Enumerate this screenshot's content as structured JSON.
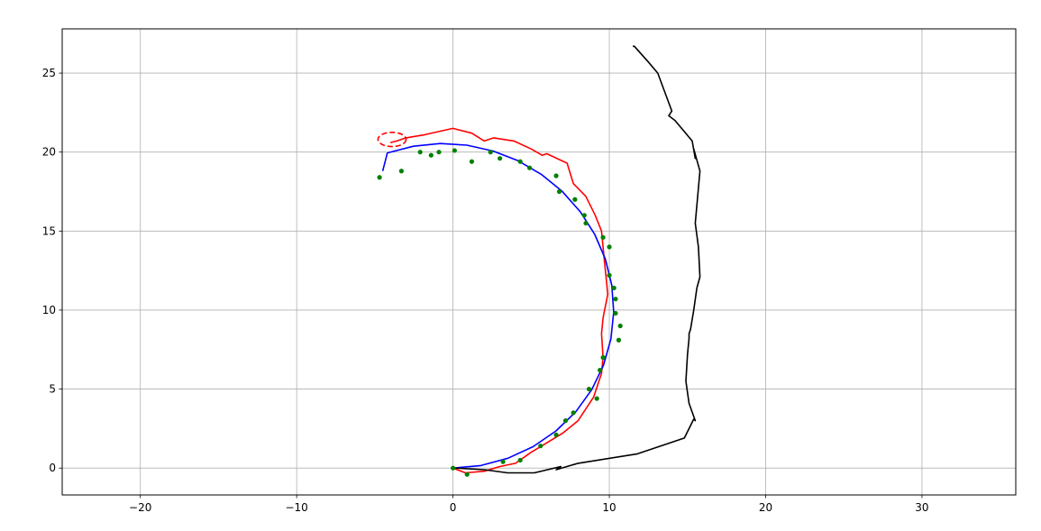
{
  "chart_data": {
    "type": "line",
    "title": "",
    "xlabel": "",
    "ylabel": "",
    "xlim": [
      -25,
      36
    ],
    "ylim": [
      -1.7,
      27.8
    ],
    "grid": true,
    "xticks": [
      -20,
      -10,
      0,
      10,
      20,
      30
    ],
    "yticks": [
      0,
      5,
      10,
      15,
      20,
      25
    ],
    "xtick_labels": [
      "−20",
      "−10",
      "0",
      "10",
      "20",
      "30"
    ],
    "ytick_labels": [
      "0",
      "5",
      "10",
      "15",
      "20",
      "25"
    ],
    "series": [
      {
        "kind": "line",
        "color": "#ff0000",
        "points": [
          [
            0,
            0
          ],
          [
            0.8,
            -0.3
          ],
          [
            2,
            -0.2
          ],
          [
            3,
            0.1
          ],
          [
            4,
            0.3
          ],
          [
            5,
            1
          ],
          [
            6,
            1.6
          ],
          [
            7,
            2.2
          ],
          [
            8,
            3
          ],
          [
            9,
            4.5
          ],
          [
            9.5,
            6
          ],
          [
            9.6,
            7
          ],
          [
            9.5,
            8.5
          ],
          [
            9.6,
            9.5
          ],
          [
            9.7,
            10
          ],
          [
            9.8,
            10.5
          ],
          [
            9.9,
            11
          ],
          [
            9.8,
            12
          ],
          [
            9.7,
            13
          ],
          [
            9.6,
            14
          ],
          [
            9.5,
            15
          ],
          [
            9.1,
            16
          ],
          [
            8.5,
            17.2
          ],
          [
            7.7,
            18
          ],
          [
            7.3,
            19.3
          ],
          [
            6,
            19.9
          ],
          [
            5.7,
            19.8
          ],
          [
            5,
            20.2
          ],
          [
            3.9,
            20.7
          ],
          [
            2.6,
            20.9
          ],
          [
            2,
            20.7
          ],
          [
            1.2,
            21.2
          ],
          [
            0,
            21.5
          ],
          [
            -1.8,
            21.1
          ],
          [
            -3,
            20.9
          ],
          [
            -3.6,
            20.7
          ],
          [
            -4,
            20.6
          ]
        ]
      },
      {
        "kind": "ellipse",
        "color": "#ff0000",
        "dashed": true,
        "center": [
          -3.9,
          20.8
        ],
        "rx": 0.9,
        "ry": 0.45
      },
      {
        "kind": "line",
        "color": "#0000ff",
        "points": [
          [
            0.0,
            0.0
          ],
          [
            1.78,
            0.16
          ],
          [
            3.51,
            0.62
          ],
          [
            5.13,
            1.36
          ],
          [
            6.59,
            2.35
          ],
          [
            7.85,
            3.56
          ],
          [
            8.87,
            4.96
          ],
          [
            9.63,
            6.51
          ],
          [
            10.1,
            8.17
          ],
          [
            10.28,
            9.87
          ],
          [
            10.16,
            11.57
          ],
          [
            9.75,
            13.22
          ],
          [
            9.07,
            14.79
          ],
          [
            8.14,
            16.23
          ],
          [
            6.99,
            17.51
          ],
          [
            5.65,
            18.59
          ],
          [
            4.16,
            19.45
          ],
          [
            2.56,
            20.07
          ],
          [
            0.89,
            20.44
          ],
          [
            -0.82,
            20.54
          ],
          [
            -2.53,
            20.37
          ],
          [
            -4.2,
            19.95
          ],
          [
            -4.5,
            18.8
          ]
        ]
      },
      {
        "kind": "scatter",
        "color": "#008000",
        "points": [
          [
            0,
            0
          ],
          [
            0.9,
            -0.4
          ],
          [
            3.2,
            0.4
          ],
          [
            4.3,
            0.5
          ],
          [
            5.6,
            1.4
          ],
          [
            6.6,
            2.1
          ],
          [
            7.2,
            3
          ],
          [
            7.7,
            3.5
          ],
          [
            8.7,
            5
          ],
          [
            9.2,
            4.4
          ],
          [
            9.6,
            7
          ],
          [
            9.4,
            6.2
          ],
          [
            10.6,
            8.1
          ],
          [
            10.7,
            9
          ],
          [
            10.4,
            9.8
          ],
          [
            10.4,
            10.7
          ],
          [
            10.3,
            11.4
          ],
          [
            10,
            12.2
          ],
          [
            10,
            14
          ],
          [
            9.6,
            14.6
          ],
          [
            8.5,
            15.5
          ],
          [
            8.4,
            16
          ],
          [
            7.8,
            17
          ],
          [
            6.8,
            17.5
          ],
          [
            6.6,
            18.5
          ],
          [
            4.9,
            19
          ],
          [
            4.3,
            19.4
          ],
          [
            3,
            19.6
          ],
          [
            2.4,
            20
          ],
          [
            1.2,
            19.4
          ],
          [
            0.1,
            20.1
          ],
          [
            -0.9,
            20
          ],
          [
            -1.4,
            19.8
          ],
          [
            -2.1,
            20
          ],
          [
            -3.3,
            18.8
          ],
          [
            -4.7,
            18.4
          ]
        ]
      },
      {
        "kind": "line",
        "color": "#000000",
        "points": [
          [
            0.2,
            0
          ],
          [
            2,
            -0.1
          ],
          [
            3.5,
            -0.3
          ],
          [
            5.2,
            -0.3
          ],
          [
            6.9,
            0.1
          ],
          [
            6.6,
            -0.1
          ],
          [
            8,
            0.3
          ],
          [
            11.8,
            0.9
          ],
          [
            14.8,
            1.9
          ],
          [
            15.4,
            3.1
          ],
          [
            15.5,
            3
          ],
          [
            15.1,
            4.1
          ],
          [
            14.9,
            5.5
          ],
          [
            15,
            7.2
          ],
          [
            15.1,
            8.2
          ],
          [
            15.1,
            8.5
          ],
          [
            15.2,
            8.8
          ],
          [
            15.4,
            10
          ],
          [
            15.6,
            11.4
          ],
          [
            15.8,
            12.1
          ],
          [
            15.7,
            14
          ],
          [
            15.5,
            15.5
          ],
          [
            15.8,
            18.8
          ],
          [
            15.4,
            20.2
          ],
          [
            15.5,
            19.6
          ],
          [
            15.3,
            20.7
          ],
          [
            14.2,
            22
          ],
          [
            13.8,
            22.3
          ],
          [
            14,
            22.6
          ],
          [
            13.1,
            25
          ],
          [
            12.5,
            25.7
          ],
          [
            11.6,
            26.7
          ],
          [
            11.5,
            26.7
          ]
        ]
      }
    ]
  }
}
